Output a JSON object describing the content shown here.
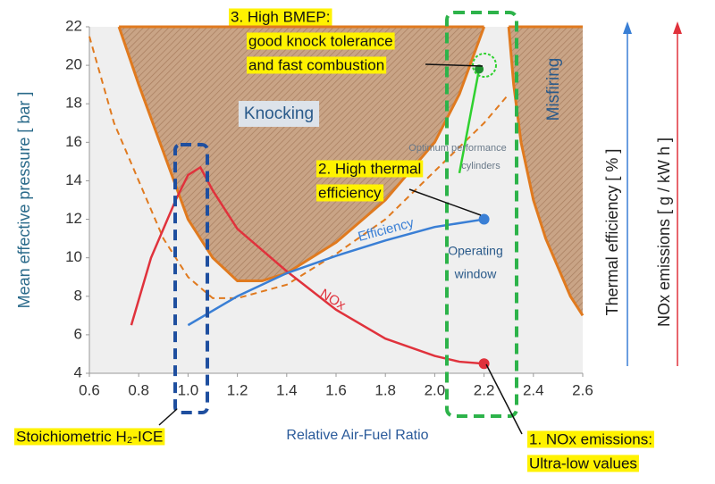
{
  "chart_data": {
    "type": "line",
    "x_label": "Relative Air-Fuel Ratio",
    "y_label": "Mean effective pressure  [ bar ]",
    "y2_labels": [
      {
        "text": "Thermal efficiency  [ % ]",
        "color": "#3a7fd5"
      },
      {
        "text": "NOx emissions  [ g / kW h ]",
        "color": "#e0323c"
      }
    ],
    "xlim": [
      0.6,
      2.6
    ],
    "xticks": [
      0.6,
      0.8,
      {
        "value": 1,
        "label": "1.0"
      },
      1.2,
      1.4,
      1.6,
      1.8,
      {
        "value": 2,
        "label": "2.0"
      },
      2.2,
      2.4,
      2.6
    ],
    "ylim": [
      4,
      22
    ],
    "yticks": [
      4,
      6,
      8,
      10,
      12,
      14,
      16,
      18,
      20,
      22
    ],
    "grid": false,
    "series": [
      {
        "name": "Knocking",
        "style": "area",
        "color": "#e07a1f",
        "x": [
          0.72,
          0.8,
          0.9,
          1.0,
          1.1,
          1.2,
          1.3,
          1.4,
          1.6,
          1.8,
          2.0,
          2.1,
          2.2
        ],
        "values": [
          22,
          19,
          15.5,
          12,
          10,
          8.8,
          8.8,
          9.2,
          10.8,
          13,
          16,
          18.5,
          22
        ]
      },
      {
        "name": "Misfiring",
        "style": "area",
        "color": "#e07a1f",
        "x": [
          2.3,
          2.32,
          2.35,
          2.4,
          2.45,
          2.5,
          2.55,
          2.6
        ],
        "values": [
          22,
          19,
          16,
          13,
          11,
          9.5,
          8,
          7
        ]
      },
      {
        "style": "dashed",
        "color": "#e07a1f",
        "x": [
          0.6,
          0.7,
          0.8,
          0.9,
          1.0,
          1.1,
          1.2,
          1.4,
          1.6,
          1.8,
          2.0,
          2.2,
          2.3
        ],
        "values": [
          21.5,
          17,
          14,
          11,
          9,
          7.9,
          7.9,
          8.6,
          10.2,
          12,
          14.5,
          17,
          18.5
        ]
      },
      {
        "name": "NOx",
        "style": "line",
        "end_marker": true,
        "color": "#e0323c",
        "x": [
          0.77,
          0.85,
          0.95,
          1.0,
          1.05,
          1.1,
          1.2,
          1.4,
          1.6,
          1.8,
          2.0,
          2.1,
          2.2
        ],
        "values": [
          6.5,
          10,
          13,
          14.3,
          14.7,
          13.5,
          11.5,
          9.3,
          7.3,
          5.8,
          4.9,
          4.6,
          4.5
        ]
      },
      {
        "name": "Efficiency",
        "style": "line",
        "end_marker": true,
        "color": "#3a7fd5",
        "x": [
          1.0,
          1.2,
          1.4,
          1.6,
          1.8,
          2.0,
          2.2
        ],
        "values": [
          6.5,
          8,
          9.2,
          10.1,
          10.9,
          11.6,
          12.0
        ]
      },
      {
        "style": "line",
        "color": "#2fd12f",
        "x": [
          2.1,
          2.18
        ],
        "values": [
          14.4,
          19.8
        ]
      },
      {
        "style": "point",
        "color": "#1f8f2f",
        "x": [
          2.18
        ],
        "values": [
          19.8
        ]
      }
    ],
    "region_labels": {
      "operating": [
        "Operating",
        "window"
      ],
      "optimum": [
        "Optimum performance",
        "cylinders"
      ]
    },
    "annotations": [
      {
        "lines": [
          "3. High BMEP:",
          "good knock tolerance",
          "and fast combustion"
        ]
      },
      {
        "lines": [
          "2. High thermal",
          "efficiency"
        ]
      },
      {
        "lines": [
          "1. NOx emissions:",
          "Ultra-low values"
        ]
      },
      {
        "lines": [
          "Stoichiometric H₂-ICE"
        ]
      }
    ]
  }
}
